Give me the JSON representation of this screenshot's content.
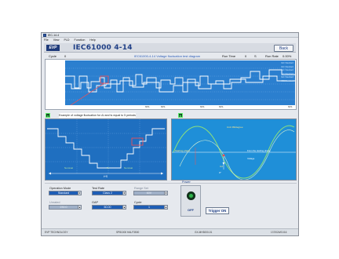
{
  "window": {
    "title": "IEC-14.4"
  },
  "menu": [
    "File",
    "View",
    "PLD",
    "Function",
    "Help"
  ],
  "header": {
    "logo": "EVP",
    "title": "IEC61000 4-14",
    "back_label": "Back"
  },
  "status": {
    "cycle_label": "Cycle",
    "cycle_value": "0",
    "diagram_caption": "IEC61000-4-14 Voltage fluctuation test diagram",
    "run_time_label": "Run Time",
    "run_time_value": "0",
    "run_time_unit": "S",
    "run_rate_label": "Run Rate",
    "run_rate_value": "0.00%"
  },
  "scope": {
    "right_labels": [
      "IEC Standard",
      "IEC Standard",
      "IEC Standard",
      "IEC Standard",
      "IEC Standard",
      "IEC Standard"
    ],
    "ticks": [
      "60S",
      "60S",
      "60S",
      "60S",
      "60S"
    ]
  },
  "left_panel": {
    "badge": "A",
    "caption": "Example of voltage fluctuation for ΔI and ts equal to 5 periods",
    "bottom_labels": [
      "Nominal",
      "Ts",
      "Nominal"
    ],
    "axis_label": "t+S"
  },
  "right_panel": {
    "badge": "B",
    "labels": [
      "Starting phase",
      "From the starting phase",
      "Ud",
      "0°",
      "Voltage"
    ],
    "top_label": "Unit 360degree"
  },
  "controls": {
    "operation_mode_label": "Operation Mode",
    "operation_mode_value": "Standard",
    "test_rate_label": "Test Rate",
    "test_rate_value": "Class 2",
    "range_set_label": "Range Set",
    "range_set_value": "60V",
    "unrated_label": "Unrated",
    "unrated_value": "230.0",
    "gap_label": "GAP",
    "gap_value": "60.00",
    "cycle_label": "Cycle",
    "cycle_value": "1",
    "power_label": "Power",
    "power_state": "OFF",
    "trigger_label": "Trigger ON"
  },
  "statusbar": {
    "left": "EVP TECHNOLOGY",
    "mid1": "SP81000 HALF3500",
    "mid2": "GX-MH3000-01",
    "right": "17/2024/01/16"
  },
  "colors": {
    "accent": "#1f3f86",
    "plot_bg": "#1f6fc0",
    "trace": "#ffffff",
    "marker": "#ff4d4d",
    "sine": "#8ce07d"
  }
}
